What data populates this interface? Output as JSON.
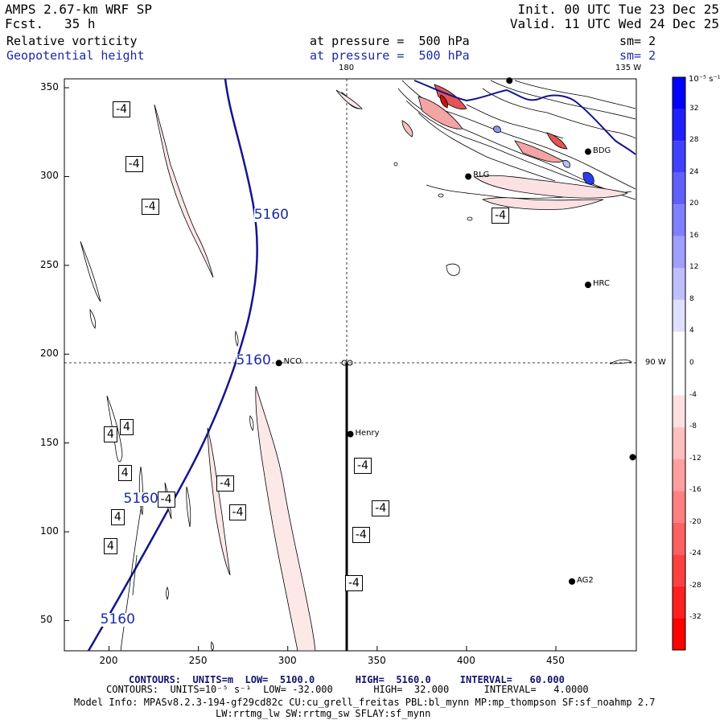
{
  "header": {
    "model": "AMPS 2.67-km WRF SP",
    "fcst_label": "Fcst.",
    "fcst_value": "35 h",
    "init": "Init. 00 UTC Tue 23 Dec 25",
    "valid": "Valid. 11 UTC Wed 24 Dec 25"
  },
  "fields": [
    {
      "name": "Relative vorticity",
      "level": "at pressure =  500 hPa",
      "smooth": "sm= 2",
      "color": "#000000"
    },
    {
      "name": "Geopotential height",
      "level": "at pressure =  500 hPa",
      "smooth": "sm= 2",
      "color": "#1c2aa6"
    }
  ],
  "map": {
    "x_ticks": [
      "200",
      "250",
      "300",
      "350",
      "400",
      "450"
    ],
    "y_ticks": [
      "350",
      "300",
      "250",
      "200",
      "150",
      "100",
      "50"
    ],
    "x_range": [
      175,
      495
    ],
    "y_range": [
      33,
      355
    ],
    "meridians": {
      "m180": "180",
      "m135w": "135 W",
      "m90w": "90 W"
    },
    "stations": [
      {
        "name": "NCO",
        "x": 295,
        "y": 195
      },
      {
        "name": "Henry",
        "x": 335,
        "y": 155
      },
      {
        "name": "HRC",
        "x": 468,
        "y": 239
      },
      {
        "name": "AG2",
        "x": 459,
        "y": 72
      },
      {
        "name": "RLG",
        "x": 401,
        "y": 300
      },
      {
        "name": "BDG",
        "x": 468,
        "y": 314
      }
    ],
    "unlabeled_stations": [
      {
        "x": 493,
        "y": 142
      },
      {
        "x": 424,
        "y": 354
      }
    ],
    "height_contour_labels": [
      {
        "text": "5160",
        "x": 291,
        "y": 278
      },
      {
        "text": "5160",
        "x": 281,
        "y": 196
      },
      {
        "text": "5160",
        "x": 218,
        "y": 118
      },
      {
        "text": "5160",
        "x": 205,
        "y": 50
      }
    ],
    "vorticity_labels": [
      {
        "text": "-4",
        "x": 207,
        "y": 338
      },
      {
        "text": "-4",
        "x": 214,
        "y": 307
      },
      {
        "text": "-4",
        "x": 223,
        "y": 283
      },
      {
        "text": "-4",
        "x": 419,
        "y": 278
      },
      {
        "text": "-4",
        "x": 342,
        "y": 137
      },
      {
        "text": "-4",
        "x": 352,
        "y": 113
      },
      {
        "text": "-4",
        "x": 341,
        "y": 98
      },
      {
        "text": "-4",
        "x": 337,
        "y": 71
      },
      {
        "text": "-4",
        "x": 265,
        "y": 127
      },
      {
        "text": "-4",
        "x": 272,
        "y": 111
      },
      {
        "text": "-4",
        "x": 232,
        "y": 118
      },
      {
        "text": "4",
        "x": 202,
        "y": 155
      },
      {
        "text": "4",
        "x": 211,
        "y": 159
      },
      {
        "text": "4",
        "x": 210,
        "y": 133
      },
      {
        "text": "4",
        "x": 206,
        "y": 108
      },
      {
        "text": "4",
        "x": 202,
        "y": 92
      }
    ]
  },
  "colorbar": {
    "unit_label": "10⁻⁵ s⁻¹",
    "ticks": [
      "32",
      "28",
      "24",
      "20",
      "16",
      "12",
      "8",
      "4",
      "0",
      "-4",
      "-8",
      "-12",
      "-16",
      "-20",
      "-24",
      "-28",
      "-32"
    ],
    "top_color": "#0000ff",
    "bottom_color": "#ff0000"
  },
  "footer": {
    "line1": "CONTOURS:  UNITS=m  LOW=  5100.0       HIGH=  5160.0     INTERVAL=   60.000",
    "line2": "CONTOURS:  UNITS=10⁻⁵ s⁻¹  LOW= -32.000       HIGH=  32.000      INTERVAL=   4.0000",
    "line3": "Model Info: MPASv8.2.3-194-gf29cd82c CU:cu_grell_freitas PBL:bl_mynn MP:mp_thompson SF:sf_noahmp 2.7",
    "line4": "LW:rrtmg_lw SW:rrtmg_sw SFLAY:sf_mynn"
  }
}
